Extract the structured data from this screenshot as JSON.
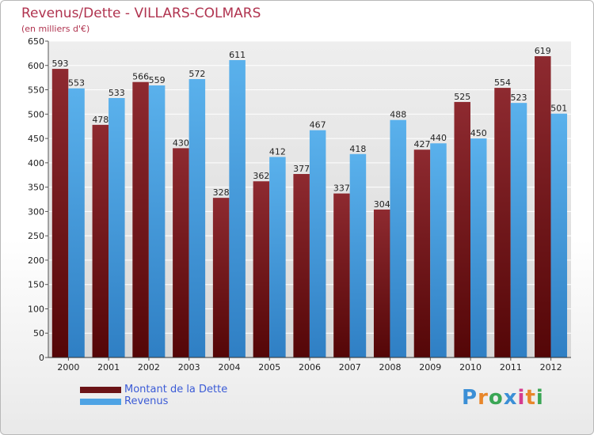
{
  "chart_data": {
    "type": "bar",
    "title": "Revenus/Dette - VILLARS-COLMARS",
    "subtitle": "(en milliers d'€)",
    "categories": [
      "2000",
      "2001",
      "2002",
      "2003",
      "2004",
      "2005",
      "2006",
      "2007",
      "2008",
      "2009",
      "2010",
      "2011",
      "2012"
    ],
    "series": [
      {
        "name": "Montant de la Dette",
        "color": "#7a1f22",
        "values": [
          593,
          478,
          566,
          430,
          328,
          362,
          377,
          337,
          304,
          427,
          525,
          554,
          619
        ]
      },
      {
        "name": "Revenus",
        "color": "#4ea3e4",
        "values": [
          553,
          533,
          559,
          572,
          611,
          412,
          467,
          418,
          488,
          440,
          450,
          523,
          501
        ]
      }
    ],
    "ylim": [
      0,
      650
    ],
    "ytick_step": 50,
    "grid": true,
    "legend_position": "bottom-left"
  },
  "logo": {
    "text": "Proxiti"
  }
}
